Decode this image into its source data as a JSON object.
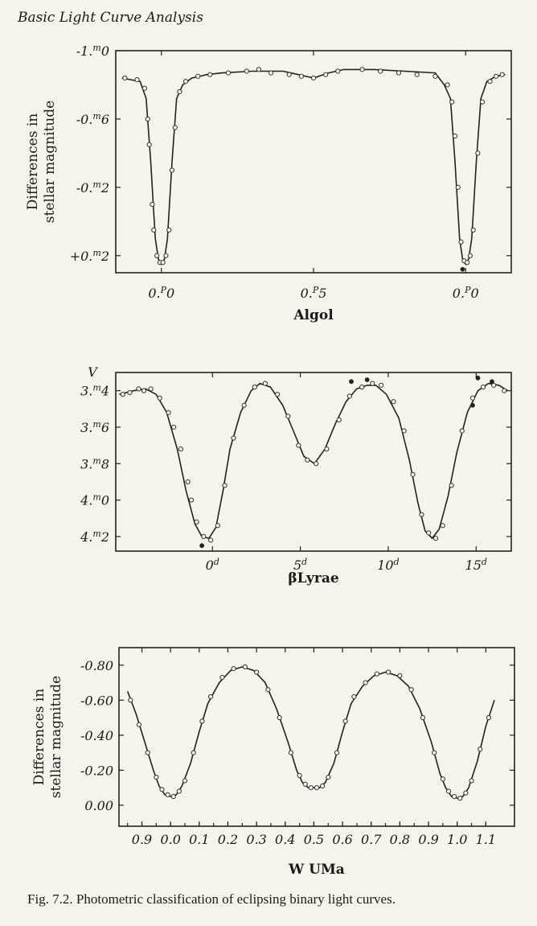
{
  "page": {
    "header": "Basic Light Curve Analysis",
    "caption": "Fig. 7.2. Photometric classification of eclipsing binary light curves."
  },
  "chart_data": [
    {
      "id": "algol",
      "type": "line",
      "title": "Algol",
      "ylabel": "Differences in stellar magnitude",
      "xlim": [
        -0.15,
        1.15
      ],
      "ylim": [
        0.3,
        -1.0
      ],
      "y_inverted": true,
      "ytick_labels": [
        {
          "value": -1.0,
          "pre": "-1.",
          "sup": "m",
          "post": "0"
        },
        {
          "value": -0.6,
          "pre": "-0.",
          "sup": "m",
          "post": "6"
        },
        {
          "value": -0.2,
          "pre": "-0.",
          "sup": "m",
          "post": "2"
        },
        {
          "value": 0.2,
          "pre": "+0.",
          "sup": "m",
          "post": "2"
        }
      ],
      "xtick_labels": [
        {
          "value": 0.0,
          "pre": "0.",
          "sup": "P",
          "post": "0"
        },
        {
          "value": 0.5,
          "pre": "0.",
          "sup": "P",
          "post": "5"
        },
        {
          "value": 1.0,
          "pre": "0.",
          "sup": "P",
          "post": "0"
        }
      ],
      "series": [
        {
          "line": {
            "x": [
              -0.13,
              -0.1,
              -0.07,
              -0.05,
              -0.035,
              -0.02,
              -0.01,
              0.0,
              0.01,
              0.02,
              0.035,
              0.05,
              0.07,
              0.1,
              0.15,
              0.2,
              0.3,
              0.4,
              0.45,
              0.5,
              0.55,
              0.6,
              0.7,
              0.8,
              0.9,
              0.93,
              0.95,
              0.965,
              0.98,
              0.99,
              1.0,
              1.01,
              1.02,
              1.035,
              1.05,
              1.07,
              1.1,
              1.13
            ],
            "y": [
              -0.84,
              -0.83,
              -0.82,
              -0.72,
              -0.35,
              0.1,
              0.22,
              0.25,
              0.22,
              0.1,
              -0.35,
              -0.72,
              -0.8,
              -0.84,
              -0.86,
              -0.87,
              -0.88,
              -0.88,
              -0.86,
              -0.84,
              -0.87,
              -0.89,
              -0.89,
              -0.88,
              -0.87,
              -0.8,
              -0.72,
              -0.35,
              0.1,
              0.22,
              0.25,
              0.22,
              0.1,
              -0.35,
              -0.72,
              -0.82,
              -0.85,
              -0.86
            ]
          },
          "points": {
            "x": [
              -0.12,
              -0.08,
              -0.055,
              -0.045,
              -0.04,
              -0.03,
              -0.025,
              -0.015,
              -0.005,
              0.005,
              0.015,
              0.025,
              0.035,
              0.045,
              0.06,
              0.08,
              0.12,
              0.16,
              0.22,
              0.28,
              0.32,
              0.36,
              0.42,
              0.46,
              0.5,
              0.54,
              0.58,
              0.66,
              0.72,
              0.78,
              0.84,
              0.9,
              0.94,
              0.955,
              0.965,
              0.975,
              0.985,
              0.995,
              1.005,
              1.015,
              1.025,
              1.04,
              1.055,
              1.08,
              1.1,
              1.12
            ],
            "y": [
              -0.84,
              -0.83,
              -0.78,
              -0.6,
              -0.45,
              -0.1,
              0.05,
              0.2,
              0.24,
              0.24,
              0.2,
              0.05,
              -0.3,
              -0.55,
              -0.76,
              -0.82,
              -0.85,
              -0.86,
              -0.87,
              -0.88,
              -0.89,
              -0.87,
              -0.86,
              -0.85,
              -0.84,
              -0.86,
              -0.88,
              -0.89,
              -0.88,
              -0.87,
              -0.86,
              -0.85,
              -0.8,
              -0.7,
              -0.5,
              -0.2,
              0.12,
              0.23,
              0.24,
              0.2,
              0.05,
              -0.4,
              -0.7,
              -0.82,
              -0.85,
              -0.86
            ],
            "filled": [
              0.99,
              0.28
            ]
          }
        }
      ]
    },
    {
      "id": "beta-lyrae",
      "type": "line",
      "title": "βLyrae",
      "ylabel": "V",
      "xlim": [
        -5.5,
        17.0
      ],
      "ylim": [
        4.28,
        3.3
      ],
      "y_inverted": true,
      "ytick_labels": [
        {
          "value": 3.4,
          "pre": "3.",
          "sup": "m",
          "post": "4"
        },
        {
          "value": 3.6,
          "pre": "3.",
          "sup": "m",
          "post": "6"
        },
        {
          "value": 3.8,
          "pre": "3.",
          "sup": "m",
          "post": "8"
        },
        {
          "value": 4.0,
          "pre": "4.",
          "sup": "m",
          "post": "0"
        },
        {
          "value": 4.2,
          "pre": "4.",
          "sup": "m",
          "post": "2"
        }
      ],
      "xtick_labels": [
        {
          "value": 0,
          "pre": "0",
          "sup": "d",
          "post": ""
        },
        {
          "value": 5,
          "pre": "5",
          "sup": "d",
          "post": ""
        },
        {
          "value": 10,
          "pre": "10",
          "sup": "d",
          "post": ""
        },
        {
          "value": 15,
          "pre": "15",
          "sup": "d",
          "post": ""
        }
      ],
      "series": [
        {
          "line": {
            "x": [
              -5.3,
              -4.5,
              -3.8,
              -3.2,
              -2.6,
              -2.0,
              -1.5,
              -1.0,
              -0.6,
              -0.2,
              0.2,
              0.6,
              1.0,
              1.6,
              2.2,
              2.7,
              3.3,
              4.0,
              4.6,
              5.2,
              5.8,
              6.4,
              7.0,
              7.6,
              8.2,
              8.8,
              9.3,
              9.9,
              10.6,
              11.2,
              11.7,
              12.1,
              12.5,
              12.9,
              13.4,
              13.9,
              14.5,
              15.1,
              15.7,
              16.3,
              16.8
            ],
            "y": [
              3.42,
              3.4,
              3.39,
              3.42,
              3.52,
              3.72,
              3.95,
              4.13,
              4.2,
              4.21,
              4.15,
              3.95,
              3.72,
              3.52,
              3.4,
              3.36,
              3.38,
              3.48,
              3.62,
              3.76,
              3.8,
              3.72,
              3.58,
              3.46,
              3.39,
              3.37,
              3.37,
              3.42,
              3.55,
              3.78,
              4.02,
              4.17,
              4.21,
              4.16,
              3.98,
              3.74,
              3.52,
              3.4,
              3.36,
              3.37,
              3.4
            ]
          },
          "points": {
            "x": [
              -5.1,
              -4.7,
              -4.2,
              -3.9,
              -3.5,
              -3.0,
              -2.5,
              -2.2,
              -1.8,
              -1.4,
              -1.2,
              -0.9,
              -0.5,
              -0.1,
              0.3,
              0.7,
              1.2,
              1.8,
              2.4,
              3.0,
              3.7,
              4.3,
              4.9,
              5.4,
              5.9,
              6.5,
              7.2,
              7.8,
              8.5,
              9.1,
              9.6,
              10.3,
              10.9,
              11.4,
              11.9,
              12.3,
              12.7,
              13.1,
              13.6,
              14.2,
              14.8,
              15.4,
              16.0,
              16.6
            ],
            "y": [
              3.42,
              3.41,
              3.39,
              3.4,
              3.39,
              3.44,
              3.52,
              3.6,
              3.72,
              3.9,
              4.0,
              4.12,
              4.2,
              4.22,
              4.14,
              3.92,
              3.66,
              3.48,
              3.38,
              3.36,
              3.42,
              3.54,
              3.7,
              3.78,
              3.8,
              3.72,
              3.56,
              3.43,
              3.38,
              3.36,
              3.37,
              3.46,
              3.62,
              3.86,
              4.08,
              4.18,
              4.21,
              4.14,
              3.92,
              3.62,
              3.44,
              3.38,
              3.37,
              3.4
            ],
            "filled": [
              -0.6,
              4.25,
              7.9,
              3.35,
              8.8,
              3.34,
              15.1,
              3.33,
              15.9,
              3.35,
              14.8,
              3.48
            ]
          }
        }
      ]
    },
    {
      "id": "w-uma",
      "type": "line",
      "title": "W UMa",
      "ylabel": "Differences in stellar magnitude",
      "xlim": [
        -0.18,
        1.2
      ],
      "ylim": [
        0.12,
        -0.9
      ],
      "y_inverted": true,
      "ytick_labels": [
        {
          "value": -0.8,
          "pre": "-0.80",
          "sup": "",
          "post": ""
        },
        {
          "value": -0.6,
          "pre": "-0.60",
          "sup": "",
          "post": ""
        },
        {
          "value": -0.4,
          "pre": "-0.40",
          "sup": "",
          "post": ""
        },
        {
          "value": -0.2,
          "pre": "-0.20",
          "sup": "",
          "post": ""
        },
        {
          "value": 0.0,
          "pre": "0.00",
          "sup": "",
          "post": ""
        }
      ],
      "xtick_labels": [
        {
          "value": -0.1,
          "pre": "0.9",
          "sup": "",
          "post": ""
        },
        {
          "value": 0.0,
          "pre": "0.0",
          "sup": "",
          "post": ""
        },
        {
          "value": 0.1,
          "pre": "0.1",
          "sup": "",
          "post": ""
        },
        {
          "value": 0.2,
          "pre": "0.2",
          "sup": "",
          "post": ""
        },
        {
          "value": 0.3,
          "pre": "0.3",
          "sup": "",
          "post": ""
        },
        {
          "value": 0.4,
          "pre": "0.4",
          "sup": "",
          "post": ""
        },
        {
          "value": 0.5,
          "pre": "0.5",
          "sup": "",
          "post": ""
        },
        {
          "value": 0.6,
          "pre": "0.6",
          "sup": "",
          "post": ""
        },
        {
          "value": 0.7,
          "pre": "0.7",
          "sup": "",
          "post": ""
        },
        {
          "value": 0.8,
          "pre": "0.8",
          "sup": "",
          "post": ""
        },
        {
          "value": 0.9,
          "pre": "0.9",
          "sup": "",
          "post": ""
        },
        {
          "value": 1.0,
          "pre": "1.0",
          "sup": "",
          "post": ""
        },
        {
          "value": 1.1,
          "pre": "1.1",
          "sup": "",
          "post": ""
        }
      ],
      "series": [
        {
          "line": {
            "x": [
              -0.15,
              -0.12,
              -0.09,
              -0.06,
              -0.04,
              -0.02,
              0.0,
              0.02,
              0.04,
              0.07,
              0.1,
              0.13,
              0.17,
              0.21,
              0.25,
              0.29,
              0.33,
              0.37,
              0.41,
              0.44,
              0.46,
              0.48,
              0.5,
              0.52,
              0.54,
              0.57,
              0.6,
              0.63,
              0.67,
              0.71,
              0.75,
              0.79,
              0.83,
              0.87,
              0.91,
              0.94,
              0.96,
              0.98,
              1.0,
              1.02,
              1.04,
              1.07,
              1.1,
              1.13
            ],
            "y": [
              -0.65,
              -0.52,
              -0.36,
              -0.2,
              -0.11,
              -0.06,
              -0.05,
              -0.06,
              -0.11,
              -0.24,
              -0.42,
              -0.58,
              -0.7,
              -0.77,
              -0.79,
              -0.77,
              -0.7,
              -0.55,
              -0.36,
              -0.2,
              -0.13,
              -0.1,
              -0.1,
              -0.1,
              -0.13,
              -0.24,
              -0.42,
              -0.58,
              -0.68,
              -0.74,
              -0.76,
              -0.74,
              -0.68,
              -0.55,
              -0.36,
              -0.18,
              -0.1,
              -0.05,
              -0.04,
              -0.05,
              -0.1,
              -0.25,
              -0.45,
              -0.6
            ]
          },
          "points": {
            "x": [
              -0.14,
              -0.11,
              -0.08,
              -0.05,
              -0.03,
              -0.01,
              0.01,
              0.03,
              0.05,
              0.08,
              0.11,
              0.14,
              0.18,
              0.22,
              0.26,
              0.3,
              0.34,
              0.38,
              0.42,
              0.45,
              0.47,
              0.49,
              0.51,
              0.53,
              0.55,
              0.58,
              0.61,
              0.64,
              0.68,
              0.72,
              0.76,
              0.8,
              0.84,
              0.88,
              0.92,
              0.95,
              0.97,
              0.99,
              1.01,
              1.03,
              1.05,
              1.08,
              1.11
            ],
            "y": [
              -0.6,
              -0.46,
              -0.3,
              -0.16,
              -0.09,
              -0.06,
              -0.05,
              -0.08,
              -0.14,
              -0.3,
              -0.48,
              -0.62,
              -0.73,
              -0.78,
              -0.79,
              -0.76,
              -0.66,
              -0.5,
              -0.3,
              -0.17,
              -0.12,
              -0.1,
              -0.1,
              -0.11,
              -0.16,
              -0.3,
              -0.48,
              -0.62,
              -0.7,
              -0.75,
              -0.76,
              -0.74,
              -0.66,
              -0.5,
              -0.3,
              -0.15,
              -0.08,
              -0.05,
              -0.04,
              -0.07,
              -0.14,
              -0.32,
              -0.5
            ],
            "filled": []
          }
        }
      ]
    }
  ]
}
